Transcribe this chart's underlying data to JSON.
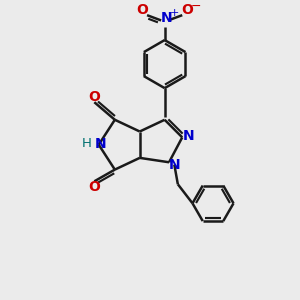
{
  "bg_color": "#ebebeb",
  "bond_color": "#1a1a1a",
  "N_color": "#0000cc",
  "O_color": "#cc0000",
  "H_color": "#007070",
  "line_width": 1.8,
  "figsize": [
    3.0,
    3.0
  ],
  "dpi": 100,
  "xlim": [
    0,
    10
  ],
  "ylim": [
    0,
    10
  ]
}
